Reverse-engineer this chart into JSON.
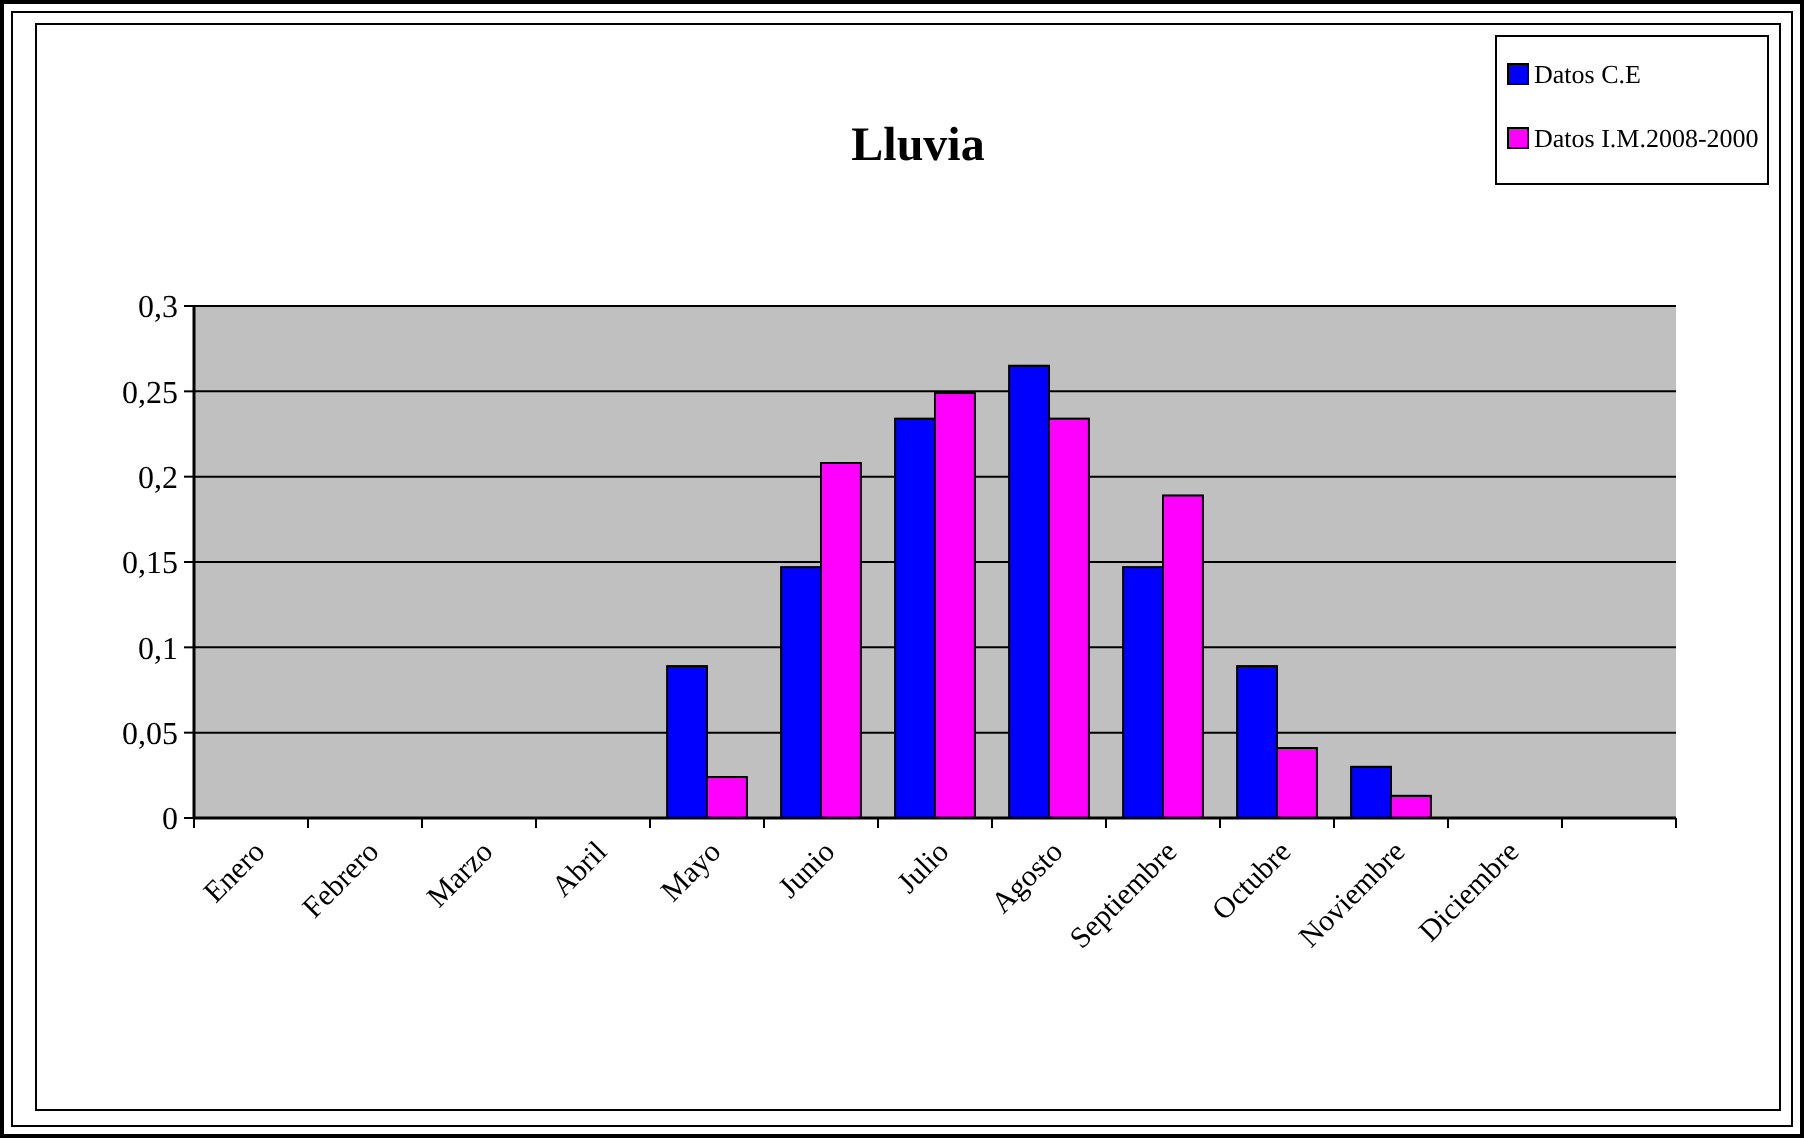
{
  "chart_data": {
    "type": "bar",
    "title": "Lluvia",
    "categories": [
      "Enero",
      "Febrero",
      "Marzo",
      "Abril",
      "Mayo",
      "Junio",
      "Julio",
      "Agosto",
      "Septiembre",
      "Octubre",
      "Noviembre",
      "Diciembre",
      null
    ],
    "series": [
      {
        "name": "Datos C.E",
        "color": "#0000ff",
        "values": [
          0,
          0,
          0,
          0,
          0.089,
          0.147,
          0.234,
          0.265,
          0.147,
          0.089,
          0.03,
          0,
          0
        ]
      },
      {
        "name": "Datos I.M.2008-2000",
        "color": "#ff00ff",
        "values": [
          0,
          0,
          0,
          0,
          0.024,
          0.208,
          0.249,
          0.234,
          0.189,
          0.041,
          0.013,
          0,
          0
        ]
      }
    ],
    "ylim": [
      0,
      0.3
    ],
    "yticks": [
      {
        "value": 0,
        "label": "0"
      },
      {
        "value": 0.05,
        "label": "0,05"
      },
      {
        "value": 0.1,
        "label": "0,1"
      },
      {
        "value": 0.15,
        "label": "0,15"
      },
      {
        "value": 0.2,
        "label": "0,2"
      },
      {
        "value": 0.25,
        "label": "0,25"
      },
      {
        "value": 0.3,
        "label": "0,3"
      }
    ],
    "grid": "y",
    "legend": "top right"
  }
}
